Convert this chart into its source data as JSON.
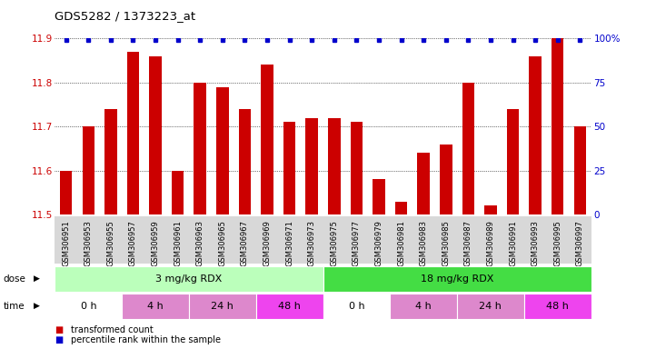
{
  "title": "GDS5282 / 1373223_at",
  "samples": [
    "GSM306951",
    "GSM306953",
    "GSM306955",
    "GSM306957",
    "GSM306959",
    "GSM306961",
    "GSM306963",
    "GSM306965",
    "GSM306967",
    "GSM306969",
    "GSM306971",
    "GSM306973",
    "GSM306975",
    "GSM306977",
    "GSM306979",
    "GSM306981",
    "GSM306983",
    "GSM306985",
    "GSM306987",
    "GSM306989",
    "GSM306991",
    "GSM306993",
    "GSM306995",
    "GSM306997"
  ],
  "bar_values": [
    11.6,
    11.7,
    11.74,
    11.87,
    11.86,
    11.6,
    11.8,
    11.79,
    11.74,
    11.84,
    11.71,
    11.72,
    11.72,
    11.71,
    11.58,
    11.53,
    11.64,
    11.66,
    11.8,
    11.52,
    11.74,
    11.86,
    11.9,
    11.7
  ],
  "ymin": 11.5,
  "ymax": 11.9,
  "yticks": [
    11.5,
    11.6,
    11.7,
    11.8,
    11.9
  ],
  "right_ytick_labels": [
    "0",
    "25",
    "50",
    "75",
    "100%"
  ],
  "bar_color": "#cc0000",
  "blue_marker_color": "#0000cc",
  "dose_groups": [
    {
      "label": "3 mg/kg RDX",
      "start": 0,
      "end": 12,
      "color": "#bbffbb"
    },
    {
      "label": "18 mg/kg RDX",
      "start": 12,
      "end": 24,
      "color": "#44dd44"
    }
  ],
  "time_groups": [
    {
      "label": "0 h",
      "start": 0,
      "end": 3,
      "color": "#ffffff"
    },
    {
      "label": "4 h",
      "start": 3,
      "end": 6,
      "color": "#dd88cc"
    },
    {
      "label": "24 h",
      "start": 6,
      "end": 9,
      "color": "#dd88cc"
    },
    {
      "label": "48 h",
      "start": 9,
      "end": 12,
      "color": "#ee44ee"
    },
    {
      "label": "0 h",
      "start": 12,
      "end": 15,
      "color": "#ffffff"
    },
    {
      "label": "4 h",
      "start": 15,
      "end": 18,
      "color": "#dd88cc"
    },
    {
      "label": "24 h",
      "start": 18,
      "end": 21,
      "color": "#dd88cc"
    },
    {
      "label": "48 h",
      "start": 21,
      "end": 24,
      "color": "#ee44ee"
    }
  ],
  "legend_items": [
    {
      "color": "#cc0000",
      "label": "transformed count"
    },
    {
      "color": "#0000cc",
      "label": "percentile rank within the sample"
    }
  ],
  "bg_color": "#ffffff",
  "tick_label_color": "#cc0000",
  "right_tick_color": "#0000cc",
  "xlabels_bg": "#d8d8d8"
}
